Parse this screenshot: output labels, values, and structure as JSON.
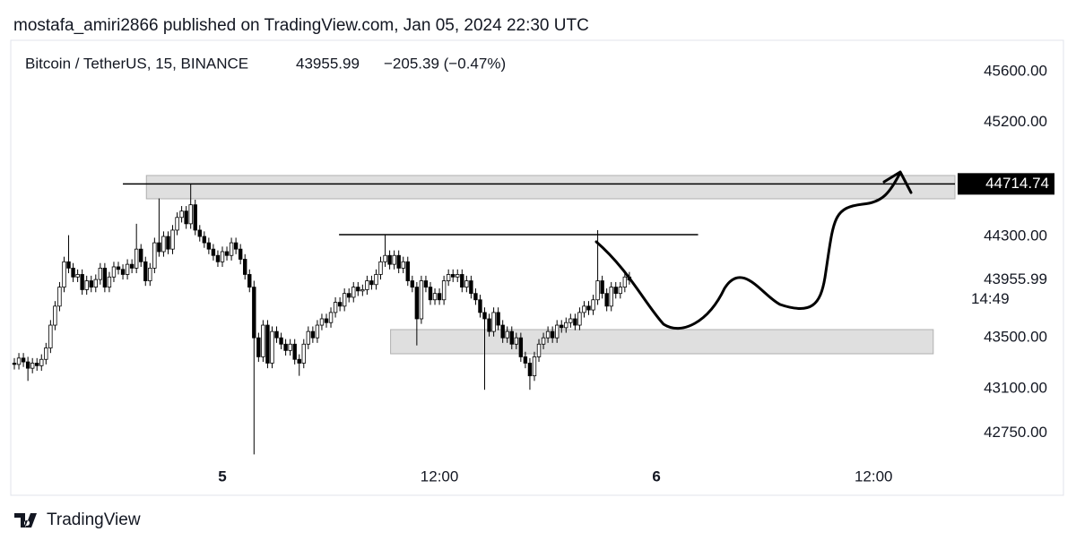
{
  "header": "mostafa_amiri2866 published on TradingView.com, Jan 05, 2024 22:30 UTC",
  "footer": "TradingView",
  "chart_data": {
    "type": "candlestick",
    "title": "Bitcoin / TetherUS, 15, BINANCE",
    "last_price": 43955.99,
    "change": "−205.39 (−0.47%)",
    "countdown": "14:49",
    "up_color": "#ffffff",
    "down_color": "#000000",
    "edge_color": "#000000",
    "xlim": [
      -11.55,
      40.5
    ],
    "xticks": [
      {
        "value": 0,
        "label": "5"
      },
      {
        "value": 12,
        "label": "12:00"
      },
      {
        "value": 24,
        "label": "6"
      },
      {
        "value": 36,
        "label": "12:00"
      }
    ],
    "ylim": [
      42526,
      45848
    ],
    "yticks": [
      {
        "value": 42750,
        "label": "42750.00"
      },
      {
        "value": 43100,
        "label": "43100.00"
      },
      {
        "value": 43500,
        "label": "43500.00"
      },
      {
        "value": 44300,
        "label": "44300.00"
      },
      {
        "value": 45200,
        "label": "45200.00"
      },
      {
        "value": 45600,
        "label": "45600.00"
      }
    ],
    "levels": [
      {
        "price": 44714.74,
        "x": [
          -5.5,
          40.5
        ]
      },
      {
        "price": 44314,
        "x": [
          6.45,
          26.3
        ]
      }
    ],
    "zones": [
      {
        "x": [
          -4.2,
          40.5
        ],
        "y": [
          44597,
          44781
        ]
      },
      {
        "x": [
          9.3,
          39.3
        ],
        "y": [
          43374,
          43565
        ]
      }
    ],
    "x": [
      -11.5,
      -11.25,
      -11,
      -10.75,
      -10.5,
      -10.25,
      -10,
      -9.75,
      -9.5,
      -9.25,
      -9,
      -8.75,
      -8.5,
      -8.25,
      -8,
      -7.75,
      -7.5,
      -7.25,
      -7,
      -6.75,
      -6.5,
      -6.25,
      -6,
      -5.75,
      -5.5,
      -5.25,
      -5,
      -4.75,
      -4.5,
      -4.25,
      -4,
      -3.75,
      -3.5,
      -3.25,
      -3,
      -2.75,
      -2.5,
      -2.25,
      -2,
      -1.75,
      -1.5,
      -1.25,
      -1,
      -0.75,
      -0.5,
      -0.25,
      0,
      0.25,
      0.5,
      0.75,
      1,
      1.25,
      1.5,
      1.75,
      2,
      2.25,
      2.5,
      2.75,
      3,
      3.25,
      3.5,
      3.75,
      4,
      4.25,
      4.5,
      4.75,
      5,
      5.25,
      5.5,
      5.75,
      6,
      6.25,
      6.5,
      6.75,
      7,
      7.25,
      7.5,
      7.75,
      8,
      8.25,
      8.5,
      8.75,
      9,
      9.25,
      9.5,
      9.75,
      10,
      10.25,
      10.5,
      10.75,
      11,
      11.25,
      11.5,
      11.75,
      12,
      12.25,
      12.5,
      12.75,
      13,
      13.25,
      13.5,
      13.75,
      14,
      14.25,
      14.5,
      14.75,
      15,
      15.25,
      15.5,
      15.75,
      16,
      16.25,
      16.5,
      16.75,
      17,
      17.25,
      17.5,
      17.75,
      18,
      18.25,
      18.5,
      18.75,
      19,
      19.25,
      19.5,
      19.75,
      20,
      20.25,
      20.5,
      20.75,
      21,
      21.25,
      21.5,
      21.75,
      22,
      22.25,
      22.5
    ],
    "open": [
      43300,
      43290,
      43340,
      43310,
      43260,
      43300,
      43280,
      43330,
      43420,
      43600,
      43750,
      43900,
      44100,
      44050,
      43980,
      44000,
      43880,
      43950,
      43900,
      43960,
      44050,
      43900,
      43980,
      44060,
      44040,
      44000,
      44080,
      44050,
      44200,
      44100,
      43950,
      44050,
      44250,
      44180,
      44300,
      44200,
      44350,
      44450,
      44500,
      44400,
      44550,
      44350,
      44300,
      44250,
      44200,
      44150,
      44100,
      44180,
      44150,
      44250,
      44200,
      44120,
      44000,
      43900,
      43500,
      43350,
      43600,
      43300,
      43550,
      43500,
      43450,
      43400,
      43450,
      43330,
      43300,
      43450,
      43550,
      43500,
      43600,
      43650,
      43620,
      43700,
      43780,
      43750,
      43850,
      43820,
      43900,
      43870,
      43880,
      43950,
      43920,
      44000,
      44100,
      44150,
      44080,
      44150,
      44050,
      44100,
      43950,
      43900,
      43650,
      43950,
      43900,
      43800,
      43850,
      43800,
      43950,
      44000,
      43980,
      44000,
      43900,
      43950,
      43850,
      43800,
      43700,
      43650,
      43550,
      43700,
      43600,
      43500,
      43550,
      43450,
      43500,
      43350,
      43300,
      43200,
      43350,
      43450,
      43500,
      43550,
      43500,
      43600,
      43580,
      43620,
      43650,
      43600,
      43700,
      43750,
      43720,
      43800,
      43950,
      43850,
      43750,
      43900,
      43850,
      43900,
      43980
    ],
    "high": [
      43340,
      43380,
      43380,
      43350,
      43340,
      43340,
      43370,
      43460,
      43640,
      43790,
      43940,
      44140,
      44310,
      44090,
      44040,
      44040,
      43990,
      43990,
      44000,
      44090,
      44090,
      44020,
      44100,
      44100,
      44080,
      44120,
      44120,
      44400,
      44240,
      44140,
      44090,
      44290,
      44600,
      44340,
      44340,
      44390,
      44490,
      44540,
      44540,
      44717,
      44590,
      44390,
      44340,
      44290,
      44240,
      44190,
      44220,
      44220,
      44290,
      44290,
      44240,
      44160,
      44040,
      43950,
      43540,
      43640,
      43640,
      43590,
      43590,
      43540,
      43490,
      43490,
      43490,
      43370,
      43490,
      43590,
      43590,
      43640,
      43690,
      43690,
      43740,
      43820,
      43820,
      43890,
      43890,
      43940,
      43940,
      43920,
      43990,
      43990,
      44040,
      44140,
      44310,
      44190,
      44190,
      44190,
      44140,
      44140,
      43990,
      43940,
      43990,
      43990,
      43940,
      43890,
      43890,
      43990,
      44040,
      44040,
      44040,
      44040,
      43990,
      43990,
      43890,
      43840,
      43740,
      43690,
      43740,
      43740,
      43640,
      43590,
      43590,
      43540,
      43540,
      43390,
      43340,
      43390,
      43490,
      43540,
      43590,
      43590,
      43640,
      43640,
      43660,
      43690,
      43690,
      43740,
      43790,
      43790,
      43840,
      44350,
      43990,
      43890,
      43940,
      43940,
      43940,
      44020,
      44020
    ],
    "low": [
      43250,
      43250,
      43270,
      43160,
      43220,
      43240,
      43240,
      43290,
      43380,
      43560,
      43710,
      43860,
      44010,
      43940,
      43940,
      43840,
      43840,
      43860,
      43860,
      43920,
      43860,
      43860,
      43940,
      44000,
      43960,
      43960,
      44010,
      44010,
      44060,
      43910,
      43910,
      44010,
      44140,
      44140,
      44160,
      44160,
      44310,
      44410,
      44360,
      44360,
      44310,
      44260,
      44210,
      44160,
      44110,
      44060,
      44060,
      44110,
      44110,
      44160,
      44080,
      43960,
      43860,
      42580,
      43310,
      43310,
      43260,
      43260,
      43460,
      43410,
      43360,
      43360,
      43290,
      43200,
      43260,
      43410,
      43460,
      43460,
      43560,
      43580,
      43580,
      43660,
      43710,
      43710,
      43780,
      43780,
      43830,
      43830,
      43840,
      43880,
      43880,
      43960,
      44060,
      44040,
      44040,
      44010,
      44010,
      43910,
      43860,
      43440,
      43610,
      43860,
      43760,
      43760,
      43760,
      43760,
      43910,
      43940,
      43940,
      43860,
      43860,
      43810,
      43760,
      43660,
      43090,
      43510,
      43510,
      43560,
      43460,
      43460,
      43410,
      43410,
      43310,
      43260,
      43090,
      43160,
      43310,
      43410,
      43460,
      43460,
      43460,
      43540,
      43540,
      43580,
      43560,
      43560,
      43660,
      43680,
      43680,
      43760,
      43810,
      43710,
      43710,
      43810,
      43810,
      43860,
      43920
    ],
    "close": [
      43290,
      43340,
      43310,
      43260,
      43300,
      43280,
      43330,
      43420,
      43600,
      43750,
      43900,
      44100,
      44050,
      43980,
      44000,
      43880,
      43950,
      43900,
      43960,
      44050,
      43900,
      43980,
      44060,
      44040,
      44000,
      44080,
      44050,
      44200,
      44100,
      43950,
      44050,
      44250,
      44180,
      44300,
      44200,
      44350,
      44450,
      44500,
      44400,
      44550,
      44350,
      44300,
      44250,
      44200,
      44150,
      44100,
      44180,
      44150,
      44250,
      44200,
      44120,
      44000,
      43900,
      43500,
      43350,
      43600,
      43300,
      43550,
      43500,
      43450,
      43400,
      43450,
      43330,
      43300,
      43450,
      43550,
      43500,
      43600,
      43650,
      43620,
      43700,
      43780,
      43750,
      43850,
      43820,
      43900,
      43870,
      43880,
      43950,
      43920,
      44000,
      44100,
      44150,
      44080,
      44150,
      44050,
      44100,
      43950,
      43900,
      43650,
      43950,
      43900,
      43800,
      43850,
      43800,
      43950,
      44000,
      43980,
      44000,
      43900,
      43950,
      43850,
      43800,
      43700,
      43650,
      43550,
      43700,
      43600,
      43500,
      43550,
      43450,
      43500,
      43350,
      43300,
      43200,
      43350,
      43450,
      43500,
      43550,
      43500,
      43600,
      43580,
      43620,
      43650,
      43600,
      43700,
      43750,
      43720,
      43800,
      43950,
      43850,
      43750,
      43900,
      43850,
      43900,
      43980,
      43955.99
    ]
  }
}
